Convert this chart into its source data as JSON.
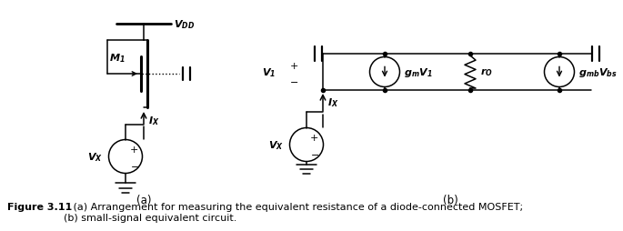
{
  "fig_width": 6.85,
  "fig_height": 2.55,
  "dpi": 100,
  "background_color": "#ffffff",
  "line_color": "#000000",
  "caption_bold": "Figure 3.11",
  "caption_text": "   (a) Arrangement for measuring the equivalent resistance of a diode-connected MOSFET;\n(b) small-signal equivalent circuit.",
  "label_a": "(a)",
  "label_b": "(b)"
}
